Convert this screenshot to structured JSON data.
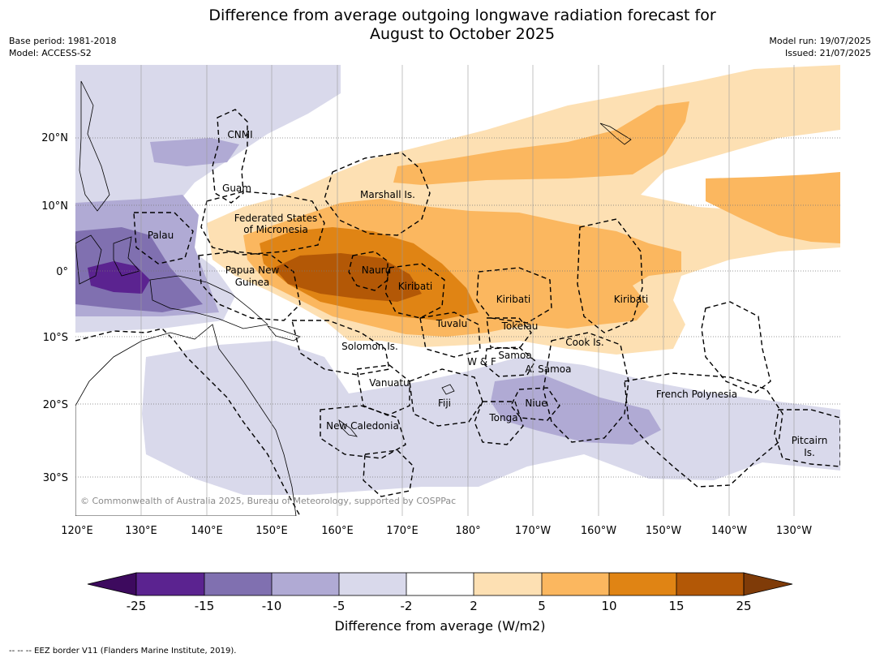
{
  "title_line1": "Difference from average outgoing longwave radiation forecast for",
  "title_line2": "August to October 2025",
  "meta_left": [
    "Base period: 1981-2018",
    "Model: ACCESS-S2"
  ],
  "meta_right": [
    "Model run: 19/07/2025",
    "Issued: 21/07/2025"
  ],
  "copyright": "© Commonwealth of Australia 2025, Bureau of Meteorology, supported by COSPPac",
  "lon_ticks": [
    "120°E",
    "130°E",
    "140°E",
    "150°E",
    "160°E",
    "170°E",
    "180°",
    "170°W",
    "160°W",
    "150°W",
    "140°W",
    "130°W"
  ],
  "lat_ticks": [
    "20°N",
    "10°N",
    "0°",
    "10°S",
    "20°S",
    "30°S"
  ],
  "colorbar": {
    "title": "Difference from average (W/m2)",
    "tick_labels": [
      "-25",
      "-15",
      "-10",
      "-5",
      "-2",
      "2",
      "5",
      "10",
      "15",
      "25"
    ],
    "colors": [
      "#3d0a5e",
      "#5b2390",
      "#8070b0",
      "#b0aad4",
      "#d9d9eb",
      "#ffffff",
      "#fde0b3",
      "#fbb75f",
      "#e08414",
      "#b35806",
      "#7f3b08"
    ]
  },
  "footnote": "--  --  -- EEZ border V11 (Flanders Marine Institute, 2019).",
  "places": [
    {
      "name": "CNMI"
    },
    {
      "name": "Guam"
    },
    {
      "name": "Marshall Is."
    },
    {
      "name": "Federated States"
    },
    {
      "name": "of Micronesia"
    },
    {
      "name": "Palau"
    },
    {
      "name": "Papua New"
    },
    {
      "name": "Guinea"
    },
    {
      "name": "Nauru"
    },
    {
      "name": "Kiribati"
    },
    {
      "name": "Kiribati"
    },
    {
      "name": "Kiribati"
    },
    {
      "name": "Tuvalu"
    },
    {
      "name": "Tokelau"
    },
    {
      "name": "Solomon Is."
    },
    {
      "name": "Cook Is."
    },
    {
      "name": "Samoa"
    },
    {
      "name": "W & F"
    },
    {
      "name": "A. Samoa"
    },
    {
      "name": "Vanuatu"
    },
    {
      "name": "Fiji"
    },
    {
      "name": "Niue"
    },
    {
      "name": "Tonga"
    },
    {
      "name": "French Polynesia"
    },
    {
      "name": "New Caledonia"
    },
    {
      "name": "Pitcairn"
    },
    {
      "name": "Is."
    }
  ]
}
